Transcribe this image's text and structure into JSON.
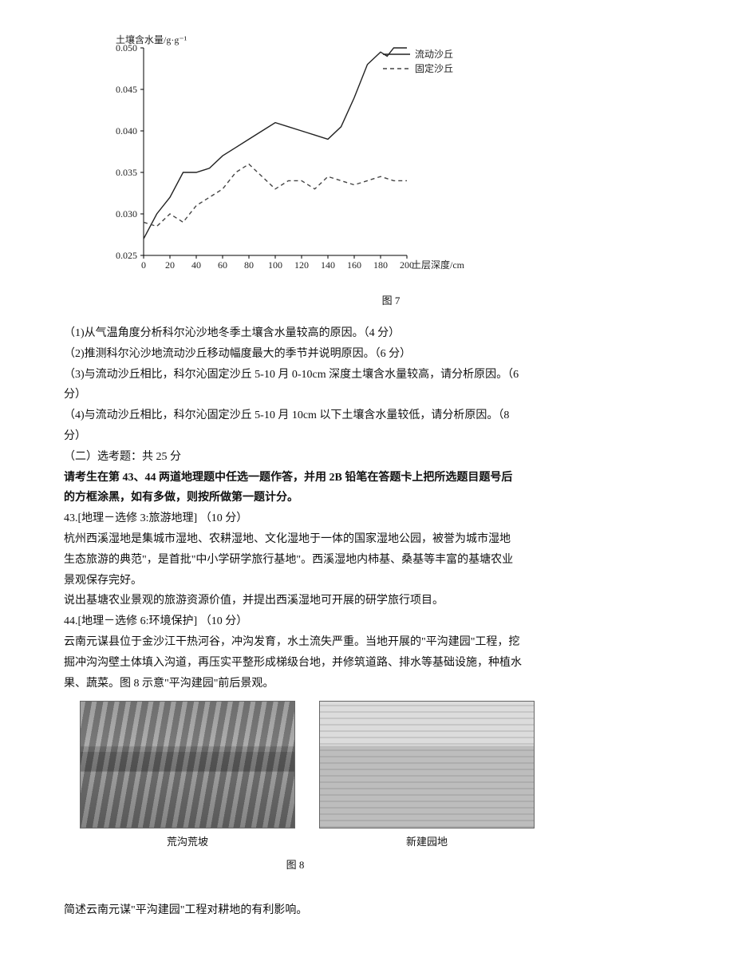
{
  "chart": {
    "type": "line",
    "y_axis_title": "土壤含水量/g·g⁻¹",
    "x_axis_title": "土层深度/cm",
    "xlim": [
      0,
      200
    ],
    "ylim": [
      0.025,
      0.05
    ],
    "x_ticks": [
      0,
      20,
      40,
      60,
      80,
      100,
      120,
      140,
      160,
      180,
      200
    ],
    "y_ticks": [
      0.025,
      0.03,
      0.035,
      0.04,
      0.045,
      0.05
    ],
    "background_color": "#ffffff",
    "axis_color": "#000000",
    "label_fontsize": 12,
    "legend": {
      "items": [
        {
          "label": "流动沙丘",
          "style": "solid",
          "color": "#222222"
        },
        {
          "label": "固定沙丘",
          "style": "dash",
          "color": "#444444"
        }
      ]
    },
    "series": [
      {
        "name": "流动沙丘",
        "style": "solid",
        "color": "#222222",
        "line_width": 1.4,
        "points": [
          [
            0,
            0.027
          ],
          [
            10,
            0.03
          ],
          [
            20,
            0.032
          ],
          [
            30,
            0.035
          ],
          [
            40,
            0.035
          ],
          [
            50,
            0.0355
          ],
          [
            60,
            0.037
          ],
          [
            70,
            0.038
          ],
          [
            80,
            0.039
          ],
          [
            90,
            0.04
          ],
          [
            100,
            0.041
          ],
          [
            110,
            0.0405
          ],
          [
            120,
            0.04
          ],
          [
            130,
            0.0395
          ],
          [
            140,
            0.039
          ],
          [
            150,
            0.0405
          ],
          [
            160,
            0.044
          ],
          [
            170,
            0.048
          ],
          [
            180,
            0.0495
          ],
          [
            185,
            0.049
          ],
          [
            190,
            0.05
          ],
          [
            200,
            0.05
          ]
        ]
      },
      {
        "name": "固定沙丘",
        "style": "dash",
        "color": "#444444",
        "line_width": 1.4,
        "dash": "5 4",
        "points": [
          [
            0,
            0.029
          ],
          [
            10,
            0.0285
          ],
          [
            20,
            0.03
          ],
          [
            30,
            0.029
          ],
          [
            40,
            0.031
          ],
          [
            50,
            0.032
          ],
          [
            60,
            0.033
          ],
          [
            70,
            0.035
          ],
          [
            80,
            0.036
          ],
          [
            90,
            0.0345
          ],
          [
            100,
            0.033
          ],
          [
            110,
            0.034
          ],
          [
            120,
            0.034
          ],
          [
            130,
            0.033
          ],
          [
            140,
            0.0345
          ],
          [
            150,
            0.034
          ],
          [
            160,
            0.0335
          ],
          [
            170,
            0.034
          ],
          [
            180,
            0.0345
          ],
          [
            190,
            0.034
          ],
          [
            200,
            0.034
          ]
        ]
      }
    ],
    "caption": "图 7"
  },
  "q1": "（1)从气温角度分析科尔沁沙地冬季土壤含水量较高的原因。（4 分）",
  "q2": "（2)推测科尔沁沙地流动沙丘移动幅度最大的季节并说明原因。（6 分）",
  "q3a": "（3)与流动沙丘相比，科尔沁固定沙丘 5-10 月 0-10cm 深度土壤含水量较高，请分析原因。（6",
  "q3b": "分）",
  "q4a": "（4)与流动沙丘相比，科尔沁固定沙丘 5-10 月 10cm 以下土壤含水量较低，请分析原因。（8",
  "q4b": "分）",
  "section2_title": "（二）选考题：共 25 分",
  "section2_instr1": "请考生在第 43、44 两道地理题中任选一题作答，并用 2B 铅笔在答题卡上把所选题目题号后",
  "section2_instr2": "的方框涂黑，如有多做，则按所做第一题计分。",
  "q43_head": "43.[地理－选修 3:旅游地理]  （10 分）",
  "q43_p1": "杭州西溪湿地是集城市湿地、农耕湿地、文化湿地于一体的国家湿地公园，被誉为城市湿地",
  "q43_p2": "生态旅游的典范\"，是首批\"中小学研学旅行基地\"。西溪湿地内柿基、桑基等丰富的基塘农业",
  "q43_p3": "景观保存完好。",
  "q43_p4": "说出基塘农业景观的旅游资源价值，并提出西溪湿地可开展的研学旅行项目。",
  "q44_head": "44.[地理－选修 6:环境保护]  （10 分）",
  "q44_p1": "云南元谋县位于金沙江干热河谷，冲沟发育，水土流失严重。当地开展的\"平沟建园\"工程，挖",
  "q44_p2": "掘冲沟沟壁土体填入沟道，再压实平整形成梯级台地，并修筑道路、排水等基础设施，种植水",
  "q44_p3": "果、蔬菜。图 8 示意\"平沟建园\"前后景观。",
  "photo_left_caption": "荒沟荒坡",
  "photo_right_caption": "新建园地",
  "fig8_caption": "图 8",
  "final_q": "简述云南元谋\"平沟建园\"工程对耕地的有利影响。"
}
